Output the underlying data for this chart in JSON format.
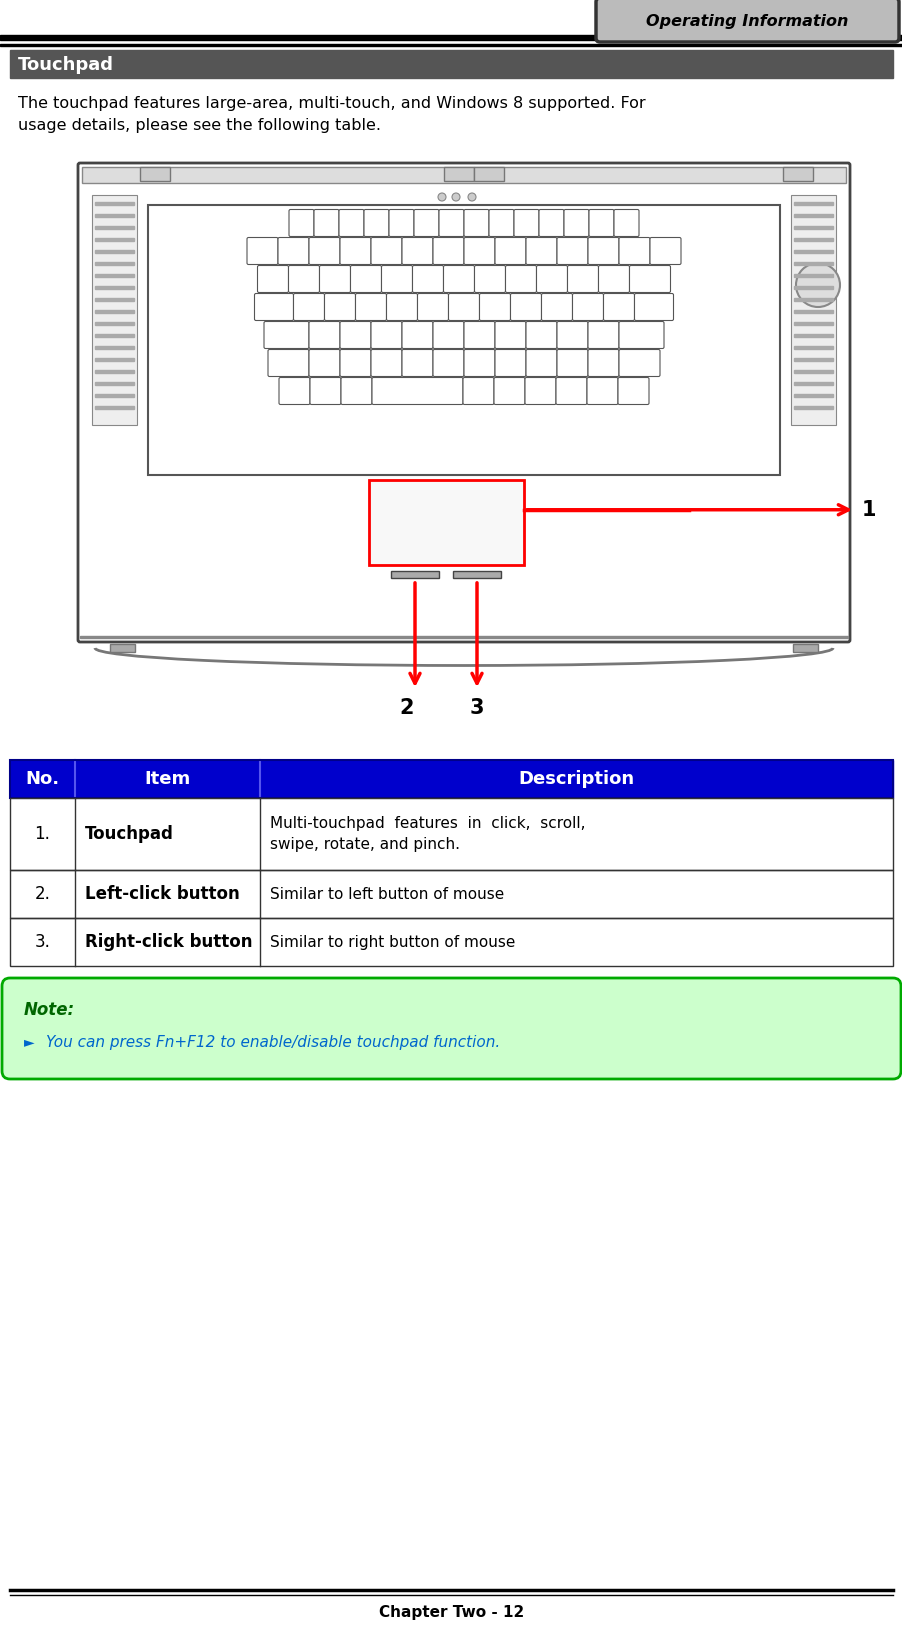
{
  "page_title": "Operating Information",
  "section_title": "Touchpad",
  "intro_text": "The touchpad features large-area, multi-touch, and Windows 8 supported. For\nusage details, please see the following table.",
  "table_header": [
    "No.",
    "Item",
    "Description"
  ],
  "table_header_bg": "#0000CC",
  "table_header_color": "#FFFFFF",
  "table_rows": [
    [
      "1.",
      "Touchpad",
      "Multi-touchpad  features  in  click,  scroll,\nswipe, rotate, and pinch."
    ],
    [
      "2.",
      "Left-click button",
      "Similar to left button of mouse"
    ],
    [
      "3.",
      "Right-click button",
      "Similar to right button of mouse"
    ]
  ],
  "table_row_bg": "#FFFFFF",
  "table_border_color": "#000080",
  "note_bg": "#CCFFCC",
  "note_border": "#00AA00",
  "note_title": "Note:",
  "note_title_color": "#006600",
  "note_text": "You can press Fn+F12 to enable/disable touchpad function.",
  "note_text_color": "#0066CC",
  "footer_text": "Chapter Two - 12",
  "background_color": "#FFFFFF"
}
